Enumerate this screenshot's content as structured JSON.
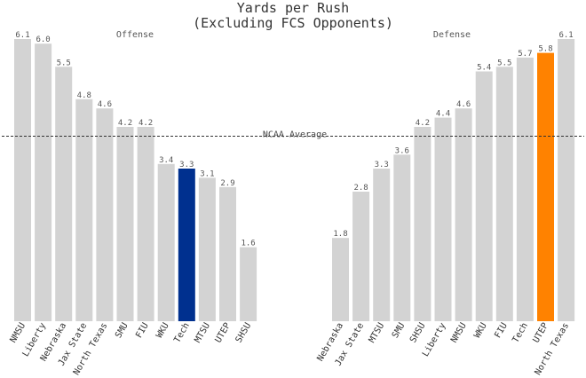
{
  "chart_data": {
    "title": "Yards per Rush",
    "subtitle": "(Excluding FCS Opponents)",
    "reference_line": {
      "label": "NCAA Average",
      "value": 4.0,
      "style": "dashed",
      "color": "#333333"
    },
    "grid": false,
    "ylim": [
      0,
      6.1
    ],
    "panels": [
      {
        "type": "bar",
        "title": "Offense",
        "categories": [
          "NMSU",
          "Liberty",
          "Nebraska",
          "Jax State",
          "North Texas",
          "SMU",
          "FIU",
          "WKU",
          "Tech",
          "MTSU",
          "UTEP",
          "SHSU"
        ],
        "values": [
          6.1,
          6.0,
          5.5,
          4.8,
          4.6,
          4.2,
          4.2,
          3.4,
          3.3,
          3.1,
          2.9,
          1.6
        ],
        "value_labels": [
          "6.1",
          "6.0",
          "5.5",
          "4.8",
          "4.6",
          "4.2",
          "4.2",
          "3.4",
          "3.3",
          "3.1",
          "2.9",
          "1.6"
        ],
        "highlight_index": 8,
        "highlight_color": "#00308f",
        "bar_color": "#d3d3d3"
      },
      {
        "type": "bar",
        "title": "Defense",
        "categories": [
          "Nebraska",
          "Jax State",
          "MTSU",
          "SMU",
          "SHSU",
          "Liberty",
          "NMSU",
          "WKU",
          "FIU",
          "Tech",
          "UTEP",
          "North Texas"
        ],
        "values": [
          1.8,
          2.8,
          3.3,
          3.6,
          4.2,
          4.4,
          4.6,
          5.4,
          5.5,
          5.7,
          5.8,
          6.1
        ],
        "value_labels": [
          "1.8",
          "2.8",
          "3.3",
          "3.6",
          "4.2",
          "4.4",
          "4.6",
          "5.4",
          "5.5",
          "5.7",
          "5.8",
          "6.1"
        ],
        "highlight_index": 10,
        "highlight_color": "#ff8200",
        "bar_color": "#d3d3d3"
      }
    ]
  }
}
